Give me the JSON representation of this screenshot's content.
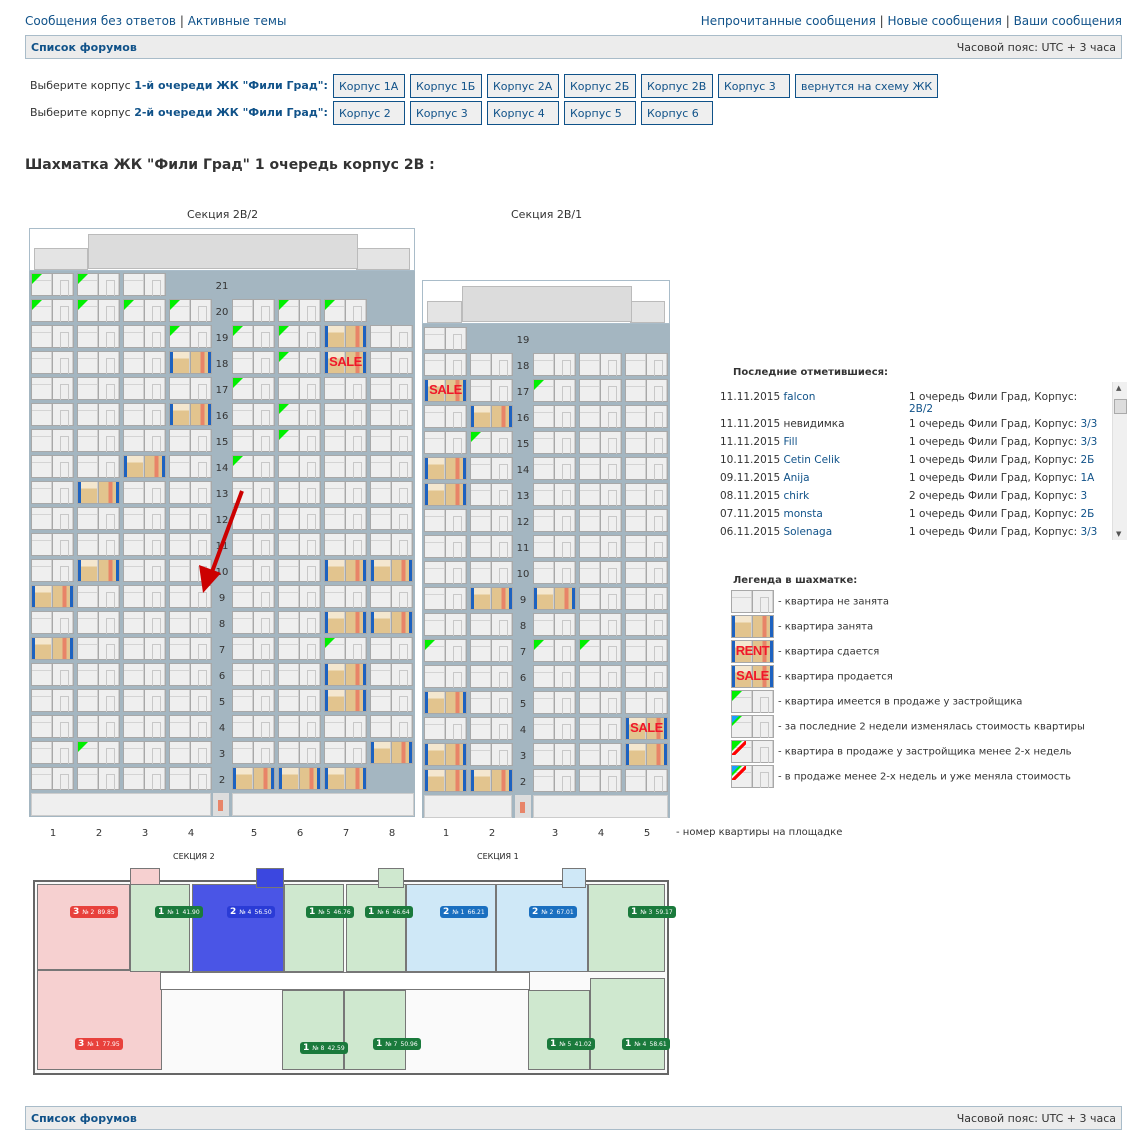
{
  "top_links": {
    "left": [
      "Сообщения без ответов",
      "Активные темы"
    ],
    "right": [
      "Непрочитанные сообщения",
      "Новые сообщения",
      "Ваши сообщения"
    ],
    "separator": "|"
  },
  "navbar": {
    "forums": "Список форумов",
    "timezone": "Часовой пояс: UTC + 3 часа"
  },
  "pick": {
    "row1": {
      "prefix": "Выберите корпус ",
      "bold": "1-й очереди ЖК \"Фили Град\"",
      "suffix": ":",
      "buttons": [
        "Корпус 1А",
        "Корпус 1Б",
        "Корпус 2А",
        "Корпус 2Б",
        "Корпус 2В",
        "Корпус 3",
        "вернутся на схему ЖК"
      ]
    },
    "row2": {
      "prefix": "Выберите корпус ",
      "bold": "2-й очереди ЖК \"Фили Град\"",
      "suffix": ":",
      "buttons": [
        "Корпус 2",
        "Корпус 3",
        "Корпус 4",
        "Корпус 5",
        "Корпус 6"
      ]
    }
  },
  "title": "Шахматка ЖК \"Фили Град\" 1 очередь корпус 2В :",
  "state_legend": {
    "e": "empty",
    "o": "occupied",
    "r": "rent",
    "s": "sale",
    "d": "developer-sale",
    "b": "price-changed",
    "dr": "developer-new",
    "bdr": "new-and-price-changed"
  },
  "sections": [
    {
      "name": "Секция 2В/2",
      "columns": [
        "1",
        "2",
        "3",
        "4",
        "5",
        "6",
        "7",
        "8"
      ],
      "floors": [
        {
          "n": "21",
          "a": "dde-----"
        },
        {
          "n": "20",
          "a": "ddddedd-"
        },
        {
          "n": "19",
          "a": "eeedddoe"
        },
        {
          "n": "18",
          "a": "eeeoedse"
        },
        {
          "n": "17",
          "a": "eeeedeee"
        },
        {
          "n": "16",
          "a": "eeeoedee"
        },
        {
          "n": "15",
          "a": "eeeeedee"
        },
        {
          "n": "14",
          "a": "eeoedeee"
        },
        {
          "n": "13",
          "a": "eoeeeeee"
        },
        {
          "n": "12",
          "a": "eeeeeeee"
        },
        {
          "n": "11",
          "a": "eeeeeeee"
        },
        {
          "n": "10",
          "a": "eoeeeeoo"
        },
        {
          "n": "9",
          "a": "oeeeeeee"
        },
        {
          "n": "8",
          "a": "eeeeeeoo"
        },
        {
          "n": "7",
          "a": "oeeeeede"
        },
        {
          "n": "6",
          "a": "eeeeeeoe"
        },
        {
          "n": "5",
          "a": "eeeeeeoe"
        },
        {
          "n": "4",
          "a": "eeeeeeee"
        },
        {
          "n": "3",
          "a": "edeeeeeo"
        },
        {
          "n": "2",
          "a": "eeeeooo-"
        }
      ]
    },
    {
      "name": "Секция 2В/1",
      "columns": [
        "1",
        "2",
        "3",
        "4",
        "5"
      ],
      "floors": [
        {
          "n": "19",
          "a": "e----"
        },
        {
          "n": "18",
          "a": "eeeee"
        },
        {
          "n": "17",
          "a": "sedee"
        },
        {
          "n": "16",
          "a": "eoeee"
        },
        {
          "n": "15",
          "a": "edeee"
        },
        {
          "n": "14",
          "a": "oeeee"
        },
        {
          "n": "13",
          "a": "oeeee"
        },
        {
          "n": "12",
          "a": "eeeee"
        },
        {
          "n": "11",
          "a": "eeeee"
        },
        {
          "n": "10",
          "a": "eeeee"
        },
        {
          "n": "9",
          "a": "eooee"
        },
        {
          "n": "8",
          "a": "eeeee"
        },
        {
          "n": "7",
          "a": "dedde"
        },
        {
          "n": "6",
          "a": "eeeee"
        },
        {
          "n": "5",
          "a": "oeeee"
        },
        {
          "n": "4",
          "a": "eeees"
        },
        {
          "n": "3",
          "a": "oeeeo"
        },
        {
          "n": "2",
          "a": "ooeee"
        }
      ]
    }
  ],
  "tags": {
    "sale": "SALE",
    "rent": "RENT"
  },
  "column_caption": "- номер квартиры на площадке",
  "visitors": {
    "title": "Последние отметившиеся:",
    "rows": [
      {
        "date": "11.11.2015",
        "user": "falcon",
        "place": "1 очередь Фили Град, Корпус:",
        "korpus": "2В/2"
      },
      {
        "date": "11.11.2015",
        "user": "невидимка",
        "place": "1 очередь Фили Град, Корпус:",
        "korpus": "3/3"
      },
      {
        "date": "11.11.2015",
        "user": "Fill",
        "place": "1 очередь Фили Град, Корпус:",
        "korpus": "3/3"
      },
      {
        "date": "10.11.2015",
        "user": "Cetin Celik",
        "place": "1 очередь Фили Град, Корпус:",
        "korpus": "2Б"
      },
      {
        "date": "09.11.2015",
        "user": "Anija",
        "place": "1 очередь Фили Град, Корпус:",
        "korpus": "1А"
      },
      {
        "date": "08.11.2015",
        "user": "chirk",
        "place": "2 очередь Фили Град, Корпус:",
        "korpus": "3"
      },
      {
        "date": "07.11.2015",
        "user": "monsta",
        "place": "1 очередь Фили Град, Корпус:",
        "korpus": "2Б"
      },
      {
        "date": "06.11.2015",
        "user": "Solenaga",
        "place": "1 очередь Фили Град, Корпус:",
        "korpus": "3/3"
      }
    ]
  },
  "legend": {
    "title": "Легенда в шахматке:",
    "items": [
      {
        "state": "e",
        "text": "- квартира не занята"
      },
      {
        "state": "o",
        "text": "- квартира занята"
      },
      {
        "state": "r",
        "text": "- квартира сдается"
      },
      {
        "state": "s",
        "text": "- квартира продается"
      },
      {
        "state": "d",
        "text": "- квартира имеется в продаже у застройщика"
      },
      {
        "state": "b",
        "text": "- за последние 2 недели изменялась стоимость квартиры"
      },
      {
        "state": "dr",
        "text": "- квартира в продаже у застройщика менее 2-х недель"
      },
      {
        "state": "bdr",
        "text": "- в продаже менее 2-х недель и уже меняла стоимость"
      }
    ]
  },
  "floorplan": {
    "section2": "СЕКЦИЯ 2",
    "section1": "СЕКЦИЯ 1",
    "apartments": [
      {
        "rooms": "3",
        "no": "№ 2",
        "area": "89.85",
        "color": "#e8413c"
      },
      {
        "rooms": "1",
        "no": "№ 1",
        "area": "41.90",
        "color": "#1a7a3c"
      },
      {
        "rooms": "2",
        "no": "№ 4",
        "area": "56.50",
        "color": "#2a3bd6"
      },
      {
        "rooms": "1",
        "no": "№ 5",
        "area": "46.76",
        "color": "#1a7a3c"
      },
      {
        "rooms": "3",
        "no": "№ 1",
        "area": "77.95",
        "color": "#e8413c"
      },
      {
        "rooms": "1",
        "no": "№ 8",
        "area": "42.59",
        "color": "#1a7a3c"
      },
      {
        "rooms": "1",
        "no": "№ 6",
        "area": "46.64",
        "color": "#1a7a3c"
      },
      {
        "rooms": "2",
        "no": "№ 1",
        "area": "66.21",
        "color": "#1a6fc0"
      },
      {
        "rooms": "2",
        "no": "№ 2",
        "area": "67.01",
        "color": "#1a6fc0"
      },
      {
        "rooms": "1",
        "no": "№ 3",
        "area": "59.17",
        "color": "#1a7a3c"
      },
      {
        "rooms": "1",
        "no": "№ 7",
        "area": "50.96",
        "color": "#1a7a3c"
      },
      {
        "rooms": "1",
        "no": "№ 5",
        "area": "41.02",
        "color": "#1a7a3c"
      },
      {
        "rooms": "1",
        "no": "№ 4",
        "area": "58.61",
        "color": "#1a7a3c"
      }
    ]
  },
  "colors": {
    "link": "#105289",
    "occupied_curtain": "#1d62c0",
    "developer": "#00f000",
    "price_changed": "#19a0ff",
    "new": "#ff0000",
    "corridor": "#a4b6c1"
  }
}
